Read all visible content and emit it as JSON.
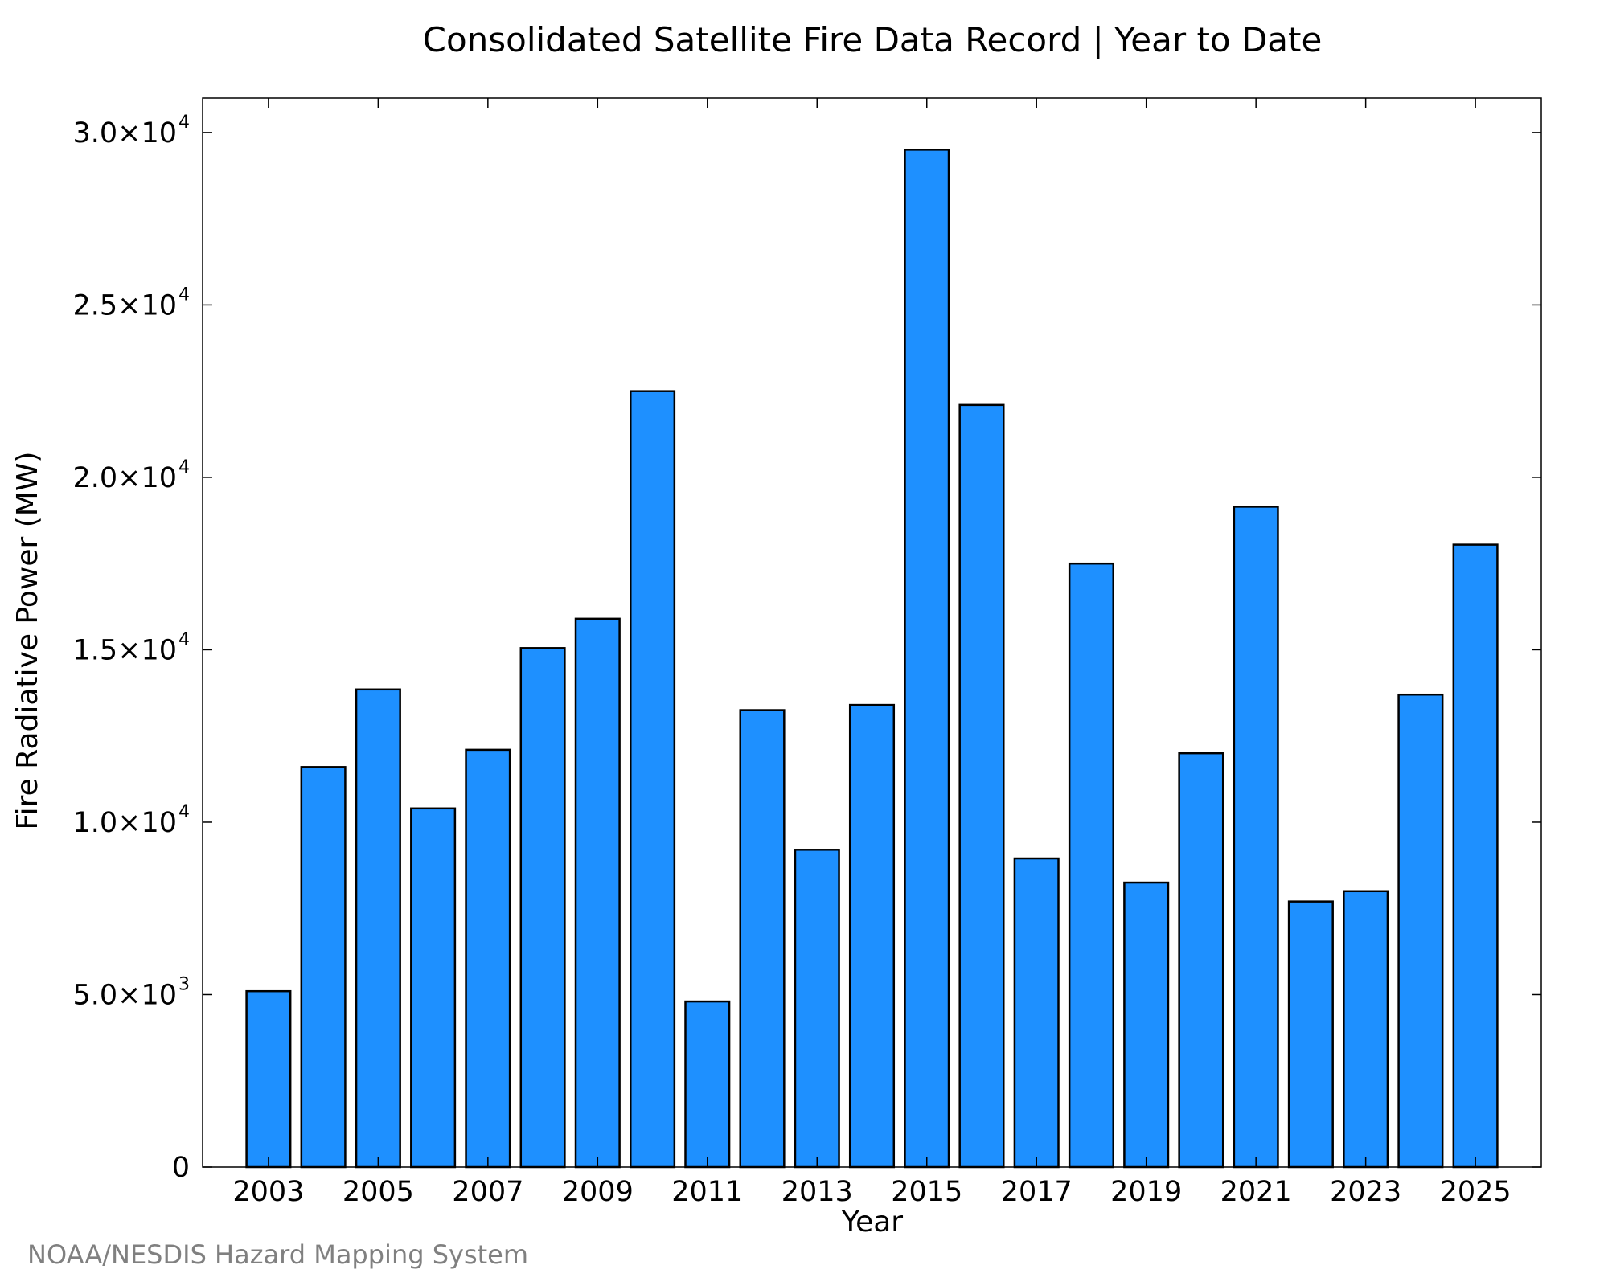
{
  "chart_data": {
    "type": "bar",
    "title": "Consolidated Satellite Fire Data Record | Year to Date",
    "xlabel": "Year",
    "ylabel": "Fire Radiative Power (MW)",
    "categories": [
      "2003",
      "2004",
      "2005",
      "2006",
      "2007",
      "2008",
      "2009",
      "2010",
      "2011",
      "2012",
      "2013",
      "2014",
      "2015",
      "2016",
      "2017",
      "2018",
      "2019",
      "2020",
      "2021",
      "2022",
      "2023",
      "2024",
      "2025"
    ],
    "values": [
      5100,
      11600,
      13850,
      10400,
      12100,
      15050,
      15900,
      22500,
      4800,
      13250,
      9200,
      13400,
      29500,
      22100,
      8950,
      17500,
      8250,
      12000,
      19150,
      7700,
      8000,
      13700,
      18050
    ],
    "x_tick_labels": [
      "2003",
      "2005",
      "2007",
      "2009",
      "2011",
      "2013",
      "2015",
      "2017",
      "2019",
      "2021",
      "2023",
      "2025"
    ],
    "y_ticks": [
      {
        "value": 0,
        "mantissa": "0",
        "exponent": ""
      },
      {
        "value": 5000,
        "mantissa": "5.0×10",
        "exponent": "3"
      },
      {
        "value": 10000,
        "mantissa": "1.0×10",
        "exponent": "4"
      },
      {
        "value": 15000,
        "mantissa": "1.5×10",
        "exponent": "4"
      },
      {
        "value": 20000,
        "mantissa": "2.0×10",
        "exponent": "4"
      },
      {
        "value": 25000,
        "mantissa": "2.5×10",
        "exponent": "4"
      },
      {
        "value": 30000,
        "mantissa": "3.0×10",
        "exponent": "4"
      }
    ],
    "ylim": [
      0,
      31000
    ],
    "grid": false,
    "bar_color": "#1e90ff",
    "bar_edge_color": "#000000"
  },
  "credit": "NOAA/NESDIS Hazard Mapping System"
}
